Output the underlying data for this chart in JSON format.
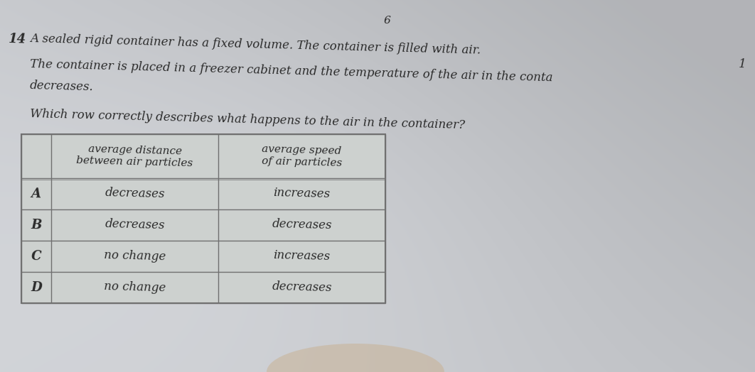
{
  "page_number": "6",
  "question_number": "14",
  "question_text_line1": "A sealed rigid container has a fixed volume. The container is filled with air.",
  "question_text_line2": "The container is placed in a freezer cabinet and the temperature of the air in the conta",
  "question_text_line2_suffix": "1",
  "question_text_line3": "decreases.",
  "question_text_line4": "Which row correctly describes what happens to the air in the container?",
  "col_header_1": "average distance\nbetween air particles",
  "col_header_2": "average speed\nof air particles",
  "rows": [
    {
      "label": "A",
      "col1": "decreases",
      "col2": "increases"
    },
    {
      "label": "B",
      "col1": "decreases",
      "col2": "decreases"
    },
    {
      "label": "C",
      "col1": "no change",
      "col2": "increases"
    },
    {
      "label": "D",
      "col1": "no change",
      "col2": "decreases"
    }
  ],
  "bg_color_light": "#d0d4d2",
  "bg_color_dark": "#b8bcba",
  "table_bg": "#d4d8d6",
  "text_color": "#2a2a2a",
  "border_color": "#707070"
}
